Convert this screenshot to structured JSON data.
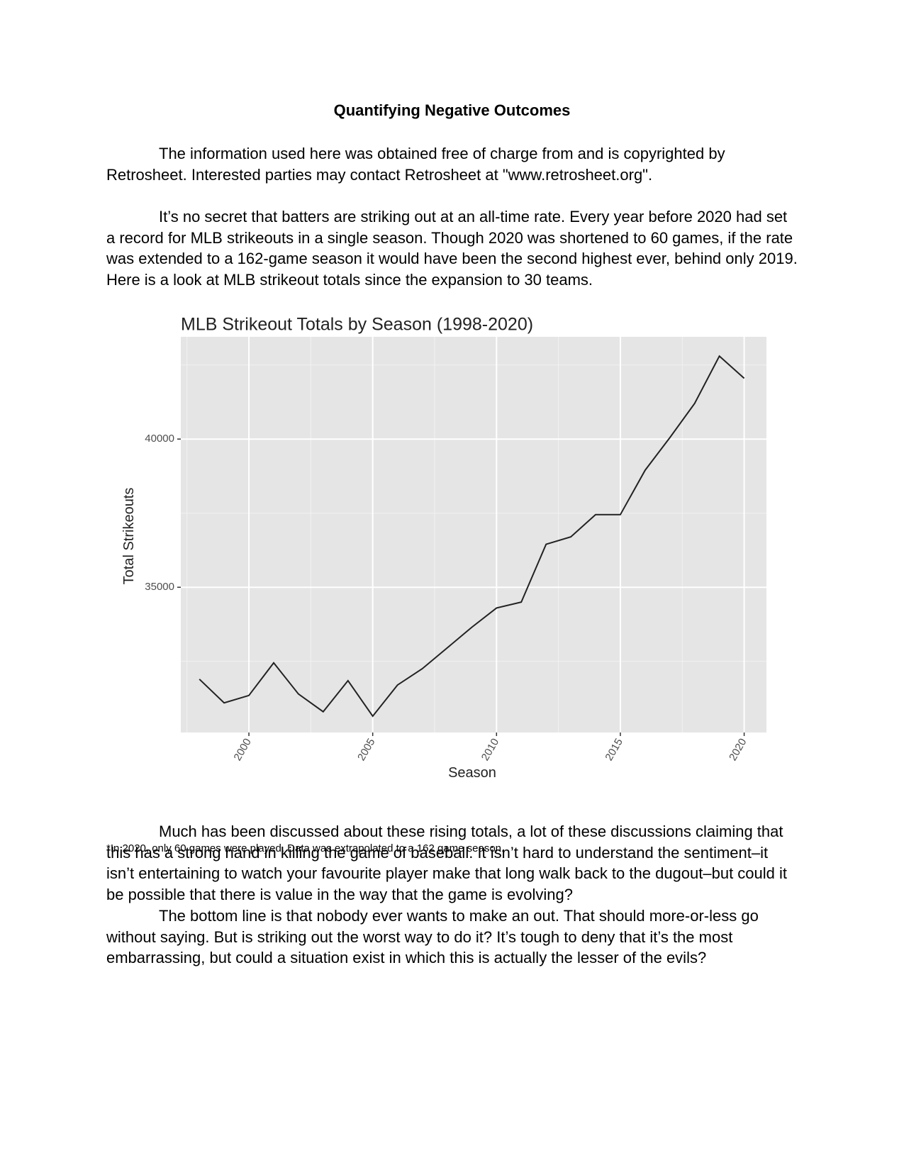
{
  "document": {
    "title": "Quantifying Negative Outcomes",
    "paragraphs": [
      "The information used here was obtained free of charge from and is copyrighted by Retrosheet. Interested parties may contact Retrosheet at \"www.retrosheet.org\".",
      "It’s no secret that batters are striking out at an all-time rate. Every year before 2020 had set a record for MLB strikeouts in a single season. Though 2020 was shortened to 60 games, if the rate was extended to a 162-game season it would have been the second highest ever, behind only 2019. Here is a look at MLB strikeout totals since the expansion to 30 teams."
    ],
    "footnote": "*In 2020, only 60 games were played. Data was extrapolated to a 162 game season.",
    "paragraphs_after": [
      "Much has been discussed about these rising totals, a lot of these discussions claiming that this has a strong hand in killing the game of baseball. It isn’t hard to understand the sentiment–it isn’t entertaining to watch your favourite player make that long walk back to the dugout–but could it be possible that there is value in the way that the game is evolving?",
      "The bottom line is that nobody ever wants to make an out. That should more-or-less go without saying. But is striking out the worst way to do it? It’s tough to deny that it’s the most embarrassing, but could a situation exist in which this is actually the lesser of the evils?"
    ]
  },
  "chart_data": {
    "type": "line",
    "title": "MLB Strikeout Totals by Season (1998-2020)",
    "xlabel": "Season",
    "ylabel": "Total Strikeouts",
    "x": [
      1998,
      1999,
      2000,
      2001,
      2002,
      2003,
      2004,
      2005,
      2006,
      2007,
      2008,
      2009,
      2010,
      2011,
      2012,
      2013,
      2014,
      2015,
      2016,
      2017,
      2018,
      2019,
      2020
    ],
    "y": [
      31900,
      31100,
      31350,
      32450,
      31400,
      30800,
      31850,
      30650,
      31700,
      32250,
      32950,
      33650,
      34300,
      34500,
      36450,
      36700,
      37450,
      37450,
      38950,
      40050,
      41200,
      42800,
      42050
    ],
    "xlim": [
      1997.25,
      2020.9
    ],
    "ylim": [
      30100,
      43450
    ],
    "x_ticks": [
      2000,
      2005,
      2010,
      2015,
      2020
    ],
    "y_ticks": [
      35000,
      40000
    ],
    "x_tick_labels": [
      "2000",
      "2005",
      "2010",
      "2015",
      "2020"
    ],
    "y_tick_labels": [
      "35000",
      "40000"
    ],
    "grid": true,
    "background": "#e5e5e5",
    "line_color": "#222222"
  }
}
